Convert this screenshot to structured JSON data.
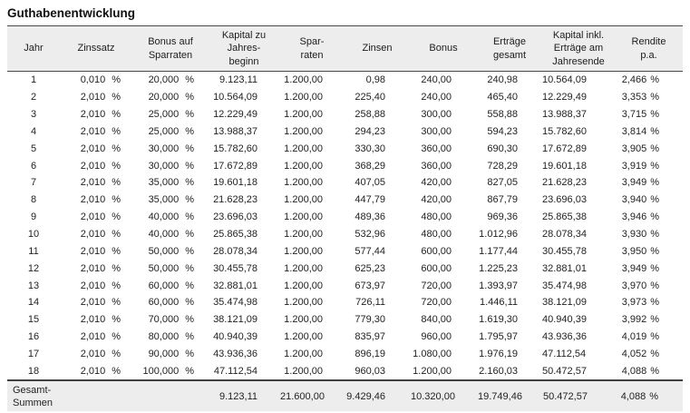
{
  "title": "Guthabenentwicklung",
  "table": {
    "columns": [
      {
        "id": "jahr",
        "label": "Jahr",
        "unit": ""
      },
      {
        "id": "zinssatz",
        "label": "Zinssatz",
        "unit": "%"
      },
      {
        "id": "bonus-auf-sparraten",
        "label": "Bonus auf\nSparraten",
        "unit": "%"
      },
      {
        "id": "kapital-zu-jahresbeginn",
        "label": "Kapital zu\nJahres-\nbeginn",
        "unit": ""
      },
      {
        "id": "sparraten",
        "label": "Spar-\nraten",
        "unit": ""
      },
      {
        "id": "zinsen",
        "label": "Zinsen",
        "unit": ""
      },
      {
        "id": "bonus",
        "label": "Bonus",
        "unit": ""
      },
      {
        "id": "ertraege-gesamt",
        "label": "Erträge\ngesamt",
        "unit": ""
      },
      {
        "id": "kapital-inkl-ertraege",
        "label": "Kapital inkl.\nErträge am\nJahresende",
        "unit": ""
      },
      {
        "id": "rendite-pa",
        "label": "Rendite\np.a.",
        "unit": "%"
      }
    ],
    "rows": [
      [
        "1",
        "0,010",
        "20,000",
        "9.123,11",
        "1.200,00",
        "0,98",
        "240,00",
        "240,98",
        "10.564,09",
        "2,466"
      ],
      [
        "2",
        "2,010",
        "20,000",
        "10.564,09",
        "1.200,00",
        "225,40",
        "240,00",
        "465,40",
        "12.229,49",
        "3,353"
      ],
      [
        "3",
        "2,010",
        "25,000",
        "12.229,49",
        "1.200,00",
        "258,88",
        "300,00",
        "558,88",
        "13.988,37",
        "3,715"
      ],
      [
        "4",
        "2,010",
        "25,000",
        "13.988,37",
        "1.200,00",
        "294,23",
        "300,00",
        "594,23",
        "15.782,60",
        "3,814"
      ],
      [
        "5",
        "2,010",
        "30,000",
        "15.782,60",
        "1.200,00",
        "330,30",
        "360,00",
        "690,30",
        "17.672,89",
        "3,905"
      ],
      [
        "6",
        "2,010",
        "30,000",
        "17.672,89",
        "1.200,00",
        "368,29",
        "360,00",
        "728,29",
        "19.601,18",
        "3,919"
      ],
      [
        "7",
        "2,010",
        "35,000",
        "19.601,18",
        "1.200,00",
        "407,05",
        "420,00",
        "827,05",
        "21.628,23",
        "3,949"
      ],
      [
        "8",
        "2,010",
        "35,000",
        "21.628,23",
        "1.200,00",
        "447,79",
        "420,00",
        "867,79",
        "23.696,03",
        "3,940"
      ],
      [
        "9",
        "2,010",
        "40,000",
        "23.696,03",
        "1.200,00",
        "489,36",
        "480,00",
        "969,36",
        "25.865,38",
        "3,946"
      ],
      [
        "10",
        "2,010",
        "40,000",
        "25.865,38",
        "1.200,00",
        "532,96",
        "480,00",
        "1.012,96",
        "28.078,34",
        "3,930"
      ],
      [
        "11",
        "2,010",
        "50,000",
        "28.078,34",
        "1.200,00",
        "577,44",
        "600,00",
        "1.177,44",
        "30.455,78",
        "3,950"
      ],
      [
        "12",
        "2,010",
        "50,000",
        "30.455,78",
        "1.200,00",
        "625,23",
        "600,00",
        "1.225,23",
        "32.881,01",
        "3,949"
      ],
      [
        "13",
        "2,010",
        "60,000",
        "32.881,01",
        "1.200,00",
        "673,97",
        "720,00",
        "1.393,97",
        "35.474,98",
        "3,970"
      ],
      [
        "14",
        "2,010",
        "60,000",
        "35.474,98",
        "1.200,00",
        "726,11",
        "720,00",
        "1.446,11",
        "38.121,09",
        "3,973"
      ],
      [
        "15",
        "2,010",
        "70,000",
        "38.121,09",
        "1.200,00",
        "779,30",
        "840,00",
        "1.619,30",
        "40.940,39",
        "3,992"
      ],
      [
        "16",
        "2,010",
        "80,000",
        "40.940,39",
        "1.200,00",
        "835,97",
        "960,00",
        "1.795,97",
        "43.936,36",
        "4,019"
      ],
      [
        "17",
        "2,010",
        "90,000",
        "43.936,36",
        "1.200,00",
        "896,19",
        "1.080,00",
        "1.976,19",
        "47.112,54",
        "4,052"
      ],
      [
        "18",
        "2,010",
        "100,000",
        "47.112,54",
        "1.200,00",
        "960,03",
        "1.200,00",
        "2.160,03",
        "50.472,57",
        "4,088"
      ]
    ],
    "totals": {
      "label": "Gesamt-\nSummen",
      "values": [
        "",
        "",
        "9.123,11",
        "21.600,00",
        "9.429,46",
        "10.320,00",
        "19.749,46",
        "50.472,57",
        "4,088"
      ]
    }
  }
}
